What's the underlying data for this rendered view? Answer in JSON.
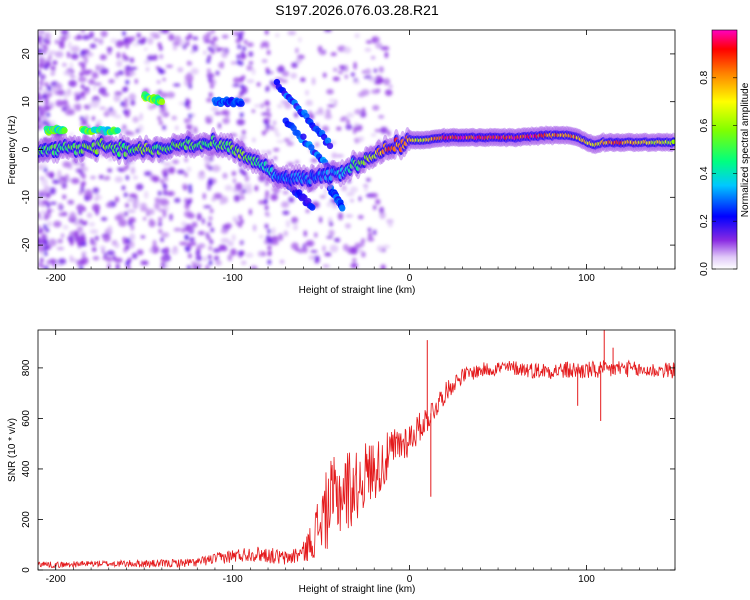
{
  "figure_title": "S197.2026.076.03.28.R21",
  "chart_data": [
    {
      "type": "heatmap",
      "title": "S197.2026.076.03.28.R21",
      "xlabel": "Height of straight line (km)",
      "ylabel": "Frequency (Hz)",
      "xlim": [
        -210,
        150
      ],
      "ylim": [
        -25,
        25
      ],
      "xticks": [
        "-200",
        "-100",
        "0",
        "100"
      ],
      "xtick_values": [
        -200,
        -100,
        0,
        100
      ],
      "yticks": [
        "-20",
        "-10",
        "0",
        "10",
        "20"
      ],
      "ytick_values": [
        -20,
        -10,
        0,
        10,
        20
      ],
      "colorbar": {
        "label": "Normalized spectral amplitude",
        "range": [
          0,
          1
        ],
        "ticks": [
          "0.0",
          "0.2",
          "0.4",
          "0.6",
          "0.8"
        ],
        "tick_values": [
          0,
          0.2,
          0.4,
          0.6,
          0.8
        ]
      },
      "ridge": {
        "description": "dominant Doppler frequency track",
        "x": [
          -205,
          -190,
          -175,
          -160,
          -150,
          -140,
          -130,
          -120,
          -110,
          -100,
          -95,
          -90,
          -85,
          -80,
          -75,
          -70,
          -60,
          -50,
          -40,
          -35,
          -30,
          -25,
          -20,
          -15,
          -10,
          -5,
          0,
          5,
          10,
          20,
          40,
          60,
          80,
          90,
          95,
          100,
          105,
          110,
          120,
          130,
          140,
          150
        ],
        "freq": [
          0,
          0,
          1,
          0,
          0,
          0,
          1,
          1,
          1,
          0,
          -1,
          -2,
          -3,
          -4,
          -6,
          -6,
          -6,
          -6,
          -5,
          -4,
          -3,
          -2,
          -1,
          0,
          0.5,
          1,
          2,
          2,
          2,
          2.5,
          2.5,
          2.5,
          3,
          3,
          2.5,
          1.5,
          1,
          1.5,
          1.5,
          1.5,
          1.5,
          1.5
        ],
        "amplitude": [
          0.5,
          0.55,
          0.6,
          0.5,
          0.6,
          0.5,
          0.55,
          0.5,
          0.5,
          0.55,
          0.6,
          0.55,
          0.45,
          0.4,
          0.3,
          0.3,
          0.3,
          0.3,
          0.35,
          0.4,
          0.5,
          0.6,
          0.7,
          0.8,
          0.85,
          0.85,
          0.75,
          0.65,
          0.7,
          0.9,
          0.95,
          0.95,
          0.9,
          0.85,
          0.8,
          0.75,
          0.7,
          0.8,
          0.85,
          0.75,
          0.7,
          0.6
        ]
      },
      "secondary_features": [
        {
          "x": [
            -205,
            -195
          ],
          "freq": [
            4,
            4
          ],
          "amplitude": 0.55
        },
        {
          "x": [
            -185,
            -165
          ],
          "freq": [
            4,
            4
          ],
          "amplitude": 0.55
        },
        {
          "x": [
            -150,
            -140
          ],
          "freq": [
            11,
            10
          ],
          "amplitude": 0.6
        },
        {
          "x": [
            -110,
            -95
          ],
          "freq": [
            10,
            10
          ],
          "amplitude": 0.3
        },
        {
          "x": [
            -75,
            -45
          ],
          "freq": [
            14,
            1
          ],
          "amplitude": 0.3
        },
        {
          "x": [
            -70,
            -40
          ],
          "freq": [
            6,
            -6
          ],
          "amplitude": 0.3
        },
        {
          "x": [
            -75,
            -55
          ],
          "freq": [
            -5,
            -12
          ],
          "amplitude": 0.25
        },
        {
          "x": [
            -45,
            -38
          ],
          "freq": [
            -8,
            -12
          ],
          "amplitude": 0.3
        }
      ]
    },
    {
      "type": "line",
      "xlabel": "Height of straight line (km)",
      "ylabel": "SNR (10 * v/v)",
      "xlim": [
        -210,
        150
      ],
      "ylim": [
        0,
        950
      ],
      "xticks": [
        "-200",
        "-100",
        "0",
        "100"
      ],
      "xtick_values": [
        -200,
        -100,
        0,
        100
      ],
      "yticks": [
        "0",
        "200",
        "400",
        "600",
        "800"
      ],
      "ytick_values": [
        0,
        200,
        400,
        600,
        800
      ],
      "series": [
        {
          "name": "SNR",
          "color": "#e41a1c",
          "x": [
            -210,
            -200,
            -180,
            -160,
            -140,
            -120,
            -110,
            -100,
            -90,
            -80,
            -70,
            -60,
            -55,
            -50,
            -45,
            -40,
            -35,
            -30,
            -25,
            -20,
            -15,
            -10,
            -5,
            0,
            5,
            10,
            15,
            20,
            25,
            30,
            40,
            50,
            60,
            70,
            80,
            90,
            100,
            110,
            120,
            130,
            140,
            150
          ],
          "y": [
            25,
            20,
            25,
            25,
            25,
            30,
            45,
            55,
            65,
            60,
            45,
            70,
            120,
            200,
            260,
            300,
            320,
            330,
            380,
            400,
            420,
            470,
            500,
            520,
            560,
            600,
            650,
            700,
            740,
            770,
            790,
            800,
            800,
            790,
            790,
            790,
            790,
            790,
            800,
            790,
            790,
            790
          ],
          "noise": [
            12,
            12,
            12,
            14,
            16,
            18,
            22,
            28,
            30,
            32,
            30,
            40,
            80,
            140,
            170,
            170,
            170,
            140,
            130,
            120,
            110,
            90,
            80,
            70,
            60,
            55,
            50,
            40,
            35,
            30,
            30,
            30,
            30,
            32,
            34,
            36,
            36,
            38,
            34,
            32,
            32,
            32
          ],
          "spikes": [
            {
              "x": 10,
              "y": 910
            },
            {
              "x": 12,
              "y": 290
            },
            {
              "x": 110,
              "y": 950
            },
            {
              "x": 108,
              "y": 590
            },
            {
              "x": 95,
              "y": 650
            },
            {
              "x": 115,
              "y": 880
            }
          ]
        }
      ]
    }
  ]
}
